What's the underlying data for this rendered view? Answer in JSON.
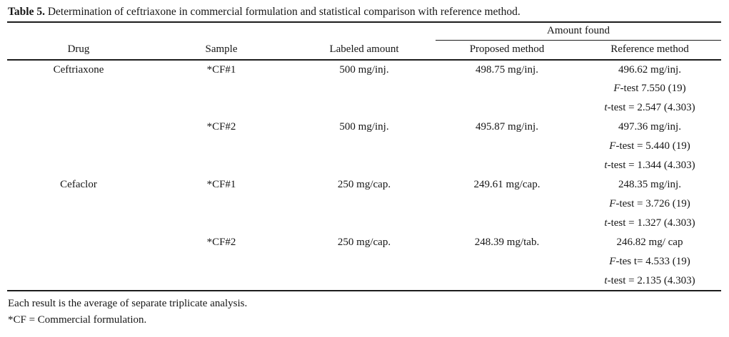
{
  "title": {
    "label": "Table 5.",
    "text": " Determination of ceftriaxone in commercial formulation and statistical comparison with reference method."
  },
  "table": {
    "span_header": "Amount found",
    "columns": [
      "Drug",
      "Sample",
      "Labeled amount",
      "Proposed method",
      "Reference method"
    ],
    "blocks": [
      {
        "drug": "Ceftriaxone",
        "sample": "*CF#1",
        "labeled": "500 mg/inj.",
        "proposed": "498.75 mg/inj.",
        "reference": "496.62 mg/inj.",
        "f_italic": "F",
        "f_text": "-test 7.550 (19)",
        "t_italic": "t",
        "t_text": "-test = 2.547 (4.303)"
      },
      {
        "drug": "",
        "sample": "*CF#2",
        "labeled": "500 mg/inj.",
        "proposed": "495.87 mg/inj.",
        "reference": "497.36 mg/inj.",
        "f_italic": "F",
        "f_text": "-test = 5.440 (19)",
        "t_italic": "t",
        "t_text": "-test = 1.344 (4.303)"
      },
      {
        "drug": "Cefaclor",
        "sample": "*CF#1",
        "labeled": "250 mg/cap.",
        "proposed": "249.61 mg/cap.",
        "reference": "248.35 mg/inj.",
        "f_italic": "F",
        "f_text": "-test = 3.726 (19)",
        "t_italic": "t",
        "t_text": "-test = 1.327 (4.303)"
      },
      {
        "drug": "",
        "sample": "*CF#2",
        "labeled": "250 mg/cap.",
        "proposed": "248.39 mg/tab.",
        "reference": "246.82 mg/ cap",
        "f_italic": "F",
        "f_text": "-tes t= 4.533 (19)",
        "t_italic": "t",
        "t_text": "-test = 2.135 (4.303)"
      }
    ]
  },
  "footnotes": [
    "Each result is the average of separate triplicate analysis.",
    "*CF = Commercial formulation."
  ]
}
